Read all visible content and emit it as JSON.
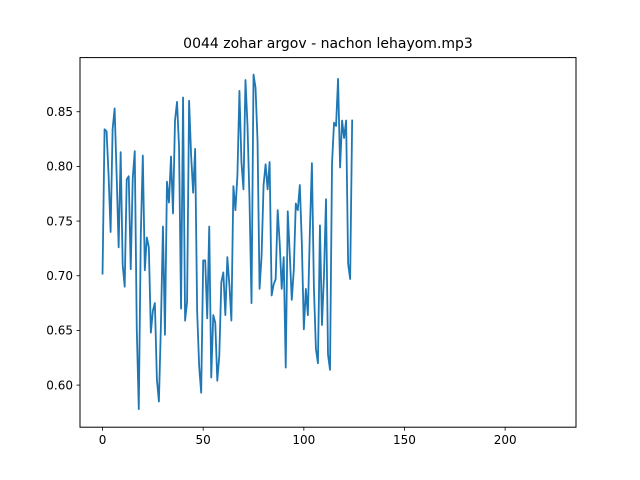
{
  "chart_data": {
    "type": "line",
    "title": "0044 zohar argov - nachon lehayom.mp3",
    "xlabel": "",
    "ylabel": "",
    "xlim": [
      -11.2,
      235.2
    ],
    "ylim": [
      0.5615,
      0.8995
    ],
    "x_ticks": [
      0,
      50,
      100,
      150,
      200
    ],
    "y_ticks": [
      0.6,
      0.65,
      0.7,
      0.75,
      0.8,
      0.85
    ],
    "x_tick_labels": [
      "0",
      "50",
      "100",
      "150",
      "200"
    ],
    "y_tick_labels": [
      "0.60",
      "0.65",
      "0.70",
      "0.75",
      "0.80",
      "0.85"
    ],
    "grid": false,
    "legend": "none",
    "series": [
      {
        "color": "#1f77b4",
        "values": [
          0.702,
          0.834,
          0.832,
          0.792,
          0.74,
          0.834,
          0.853,
          0.792,
          0.726,
          0.813,
          0.71,
          0.69,
          0.788,
          0.791,
          0.706,
          0.789,
          0.814,
          0.651,
          0.578,
          0.737,
          0.81,
          0.705,
          0.735,
          0.726,
          0.648,
          0.668,
          0.675,
          0.605,
          0.585,
          0.655,
          0.745,
          0.646,
          0.786,
          0.767,
          0.809,
          0.757,
          0.842,
          0.859,
          0.818,
          0.67,
          0.863,
          0.659,
          0.676,
          0.86,
          0.81,
          0.776,
          0.816,
          0.667,
          0.617,
          0.593,
          0.714,
          0.714,
          0.661,
          0.745,
          0.607,
          0.664,
          0.657,
          0.604,
          0.627,
          0.694,
          0.703,
          0.664,
          0.717,
          0.692,
          0.659,
          0.782,
          0.76,
          0.792,
          0.869,
          0.804,
          0.779,
          0.879,
          0.838,
          0.77,
          0.675,
          0.884,
          0.872,
          0.823,
          0.688,
          0.718,
          0.783,
          0.802,
          0.779,
          0.804,
          0.682,
          0.692,
          0.697,
          0.76,
          0.73,
          0.688,
          0.717,
          0.616,
          0.759,
          0.72,
          0.678,
          0.705,
          0.766,
          0.76,
          0.783,
          0.73,
          0.651,
          0.688,
          0.664,
          0.741,
          0.803,
          0.689,
          0.633,
          0.62,
          0.746,
          0.655,
          0.7,
          0.77,
          0.628,
          0.614,
          0.803,
          0.84,
          0.837,
          0.88,
          0.799,
          0.842,
          0.826,
          0.842,
          0.711,
          0.697,
          0.842
        ]
      }
    ]
  }
}
